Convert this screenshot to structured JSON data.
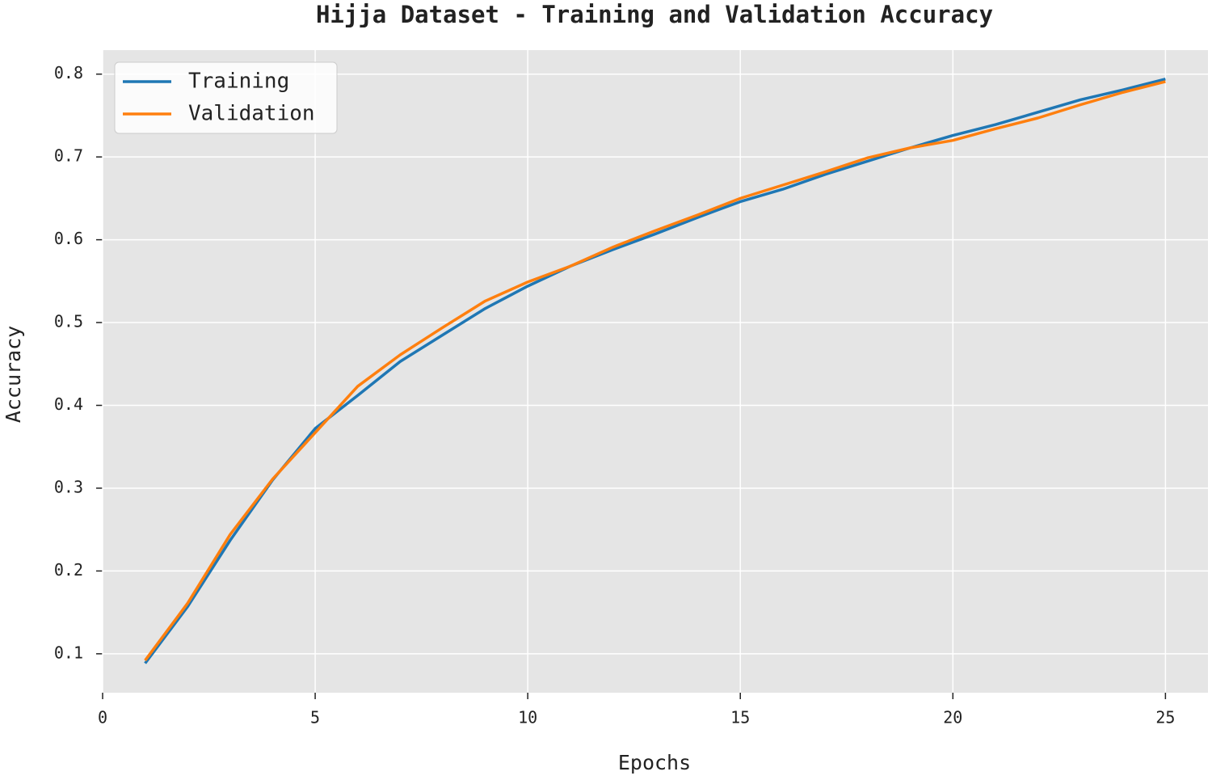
{
  "chart_data": {
    "type": "line",
    "title": "Hijja Dataset - Training and Validation Accuracy",
    "x_label": "Epochs",
    "y_label": "Accuracy",
    "x": [
      1,
      2,
      3,
      4,
      5,
      6,
      7,
      8,
      9,
      10,
      11,
      12,
      13,
      14,
      15,
      16,
      17,
      18,
      19,
      20,
      21,
      22,
      23,
      24,
      25
    ],
    "series": [
      {
        "name": "Training",
        "color": "#1f77b4",
        "values": [
          0.0885,
          0.157,
          0.237,
          0.31,
          0.372,
          0.412,
          0.453,
          0.485,
          0.517,
          0.544,
          0.568,
          0.588,
          0.607,
          0.627,
          0.646,
          0.661,
          0.679,
          0.695,
          0.711,
          0.726,
          0.739,
          0.754,
          0.769,
          0.781,
          0.794
        ]
      },
      {
        "name": "Validation",
        "color": "#ff7f0e",
        "values": [
          0.092,
          0.161,
          0.244,
          0.311,
          0.367,
          0.423,
          0.461,
          0.494,
          0.526,
          0.549,
          0.568,
          0.591,
          0.611,
          0.63,
          0.65,
          0.666,
          0.682,
          0.699,
          0.711,
          0.72,
          0.734,
          0.747,
          0.763,
          0.778,
          0.791
        ]
      }
    ],
    "xlim": [
      0,
      26
    ],
    "xticks": [
      0,
      5,
      10,
      15,
      20,
      25
    ],
    "ylim": [
      0.053,
      0.829
    ],
    "yticks": [
      0.1,
      0.2,
      0.3,
      0.4,
      0.5,
      0.6,
      0.7,
      0.8
    ],
    "grid": true,
    "legend": "upper-left"
  }
}
